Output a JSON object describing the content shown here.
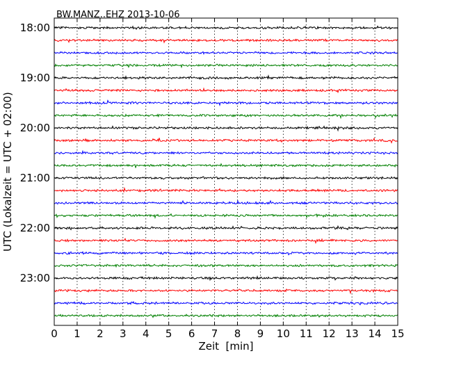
{
  "chart_data": {
    "type": "line",
    "title": "BW.MANZ..EHZ 2013-10-06",
    "xlabel": "Zeit  [min]",
    "ylabel": "UTC (Lokalzeit = UTC + 02:00)",
    "xlim": [
      0,
      15
    ],
    "x_ticks": [
      "0",
      "1",
      "2",
      "3",
      "4",
      "5",
      "6",
      "7",
      "8",
      "9",
      "10",
      "11",
      "12",
      "13",
      "14",
      "15"
    ],
    "y_tick_labels": [
      "18:00",
      "19:00",
      "20:00",
      "21:00",
      "22:00",
      "23:00"
    ],
    "grid": true,
    "trace_colors": [
      "#000000",
      "#ff0000",
      "#0000ff",
      "#008000"
    ],
    "traces": [
      {
        "start": "18:00",
        "color": "#000000"
      },
      {
        "start": "18:15",
        "color": "#ff0000"
      },
      {
        "start": "18:30",
        "color": "#0000ff"
      },
      {
        "start": "18:45",
        "color": "#008000"
      },
      {
        "start": "19:00",
        "color": "#000000"
      },
      {
        "start": "19:15",
        "color": "#ff0000"
      },
      {
        "start": "19:30",
        "color": "#0000ff"
      },
      {
        "start": "19:45",
        "color": "#008000"
      },
      {
        "start": "20:00",
        "color": "#000000"
      },
      {
        "start": "20:15",
        "color": "#ff0000"
      },
      {
        "start": "20:30",
        "color": "#0000ff"
      },
      {
        "start": "20:45",
        "color": "#008000"
      },
      {
        "start": "21:00",
        "color": "#000000"
      },
      {
        "start": "21:15",
        "color": "#ff0000"
      },
      {
        "start": "21:30",
        "color": "#0000ff"
      },
      {
        "start": "21:45",
        "color": "#008000"
      },
      {
        "start": "22:00",
        "color": "#000000"
      },
      {
        "start": "22:15",
        "color": "#ff0000"
      },
      {
        "start": "22:30",
        "color": "#0000ff"
      },
      {
        "start": "22:45",
        "color": "#008000"
      },
      {
        "start": "23:00",
        "color": "#000000"
      },
      {
        "start": "23:15",
        "color": "#ff0000"
      },
      {
        "start": "23:30",
        "color": "#0000ff"
      },
      {
        "start": "23:45",
        "color": "#008000"
      }
    ]
  }
}
